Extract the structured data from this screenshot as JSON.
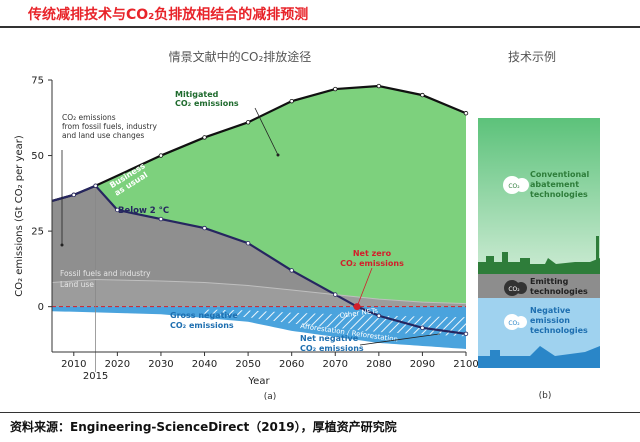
{
  "header": {
    "title": "传统减排技术与CO₂负排放相结合的减排预测",
    "panel_a_title": "情景文献中的CO₂排放途径",
    "panel_b_title": "技术示例",
    "panel_a_tag": "(a)",
    "panel_b_tag": "(b)"
  },
  "footer": {
    "source": "资料来源：Engineering-ScienceDirect（2019），厚植资产研究院"
  },
  "chart_data": {
    "type": "area",
    "xlabel": "Year",
    "ylabel": "CO₂ emissions (Gt CO₂ per year)",
    "xlim": [
      2005,
      2100
    ],
    "ylim": [
      -15,
      75
    ],
    "x_ticks": [
      2010,
      2020,
      2030,
      2040,
      2050,
      2060,
      2070,
      2080,
      2090,
      2100
    ],
    "y_ticks": [
      0,
      25,
      50,
      75
    ],
    "extra_tick": "2015",
    "series": [
      {
        "name": "Business as usual",
        "x": [
          2005,
          2010,
          2015,
          2030,
          2040,
          2050,
          2060,
          2070,
          2080,
          2090,
          2100
        ],
        "values": [
          35,
          37,
          40,
          50,
          56,
          61,
          68,
          72,
          73,
          70,
          64
        ]
      },
      {
        "name": "Below 2 °C",
        "x": [
          2005,
          2010,
          2015,
          2020,
          2030,
          2040,
          2050,
          2060,
          2070,
          2075,
          2080,
          2090,
          2100
        ],
        "values": [
          35,
          37,
          40,
          32,
          29,
          26,
          21,
          12,
          4,
          0,
          -3,
          -7,
          -9
        ]
      },
      {
        "name": "Fossil fuels and industry",
        "x": [
          2005,
          2015,
          2030,
          2040,
          2050,
          2060,
          2070,
          2080,
          2090,
          2100
        ],
        "values": [
          8,
          9,
          8.5,
          8,
          7,
          5.5,
          4,
          2.5,
          1.5,
          1
        ]
      },
      {
        "name": "Gross negative",
        "x": [
          2005,
          2030,
          2050,
          2060,
          2070,
          2080,
          2090,
          2100
        ],
        "values": [
          -1.5,
          -2.5,
          -5,
          -8,
          -10,
          -12,
          -13,
          -14
        ]
      }
    ],
    "annotations": {
      "mitigated": "Mitigated CO₂ emissions",
      "co2_emissions": "CO₂ emissions from fossil fuels, industry and land use changes",
      "business_as_usual": "Business as usual",
      "below_2c": "Below 2 °C",
      "fossil_fuels": "Fossil fuels and industry",
      "land_use": "Land use",
      "net_zero": "Net zero CO₂ emissions",
      "gross_negative": "Gross negative CO₂ emissions",
      "other_nets": "Other NETs",
      "afforestation": "Afforestation / Reforestation",
      "net_negative": "Net negative CO₂ emissions"
    },
    "colors": {
      "mitigated": "#7dd17d",
      "gray": "#8f8f8f",
      "negative": "#4aa3dd",
      "bau_line": "#111111",
      "below_line": "#262660",
      "net_zero_dot": "#d21f2b"
    }
  },
  "panel_b": {
    "conventional": "Conventional abatement technologies",
    "emitting": "Emitting technologies",
    "negative": "Negative emission technologies",
    "co2_badge": "CO₂"
  }
}
